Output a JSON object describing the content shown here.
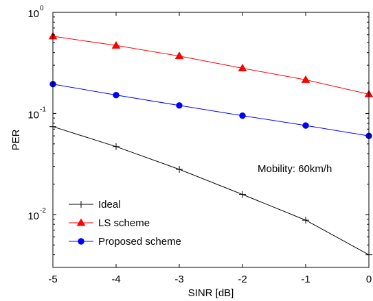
{
  "chart_data": {
    "type": "line",
    "xlabel": "SINR [dB]",
    "ylabel": "PER",
    "x": [
      -5,
      -4,
      -3,
      -2,
      -1,
      0
    ],
    "xlim": [
      -5,
      0
    ],
    "ylim": [
      0.003,
      1
    ],
    "yscale": "log",
    "grid": false,
    "legend_position": "bottom-left",
    "x_ticks": [
      "-5",
      "-4",
      "-3",
      "-2",
      "-1",
      "0"
    ],
    "y_ticks": [
      {
        "base": "10",
        "exp": "0",
        "value": 1
      },
      {
        "base": "10",
        "exp": "-1",
        "value": 0.1
      },
      {
        "base": "10",
        "exp": "-2",
        "value": 0.01
      }
    ],
    "annotation": "Mobility: 60km/h",
    "series": [
      {
        "name": "Ideal",
        "color": "#000000",
        "marker": "plus",
        "values": [
          0.074,
          0.047,
          0.028,
          0.0158,
          0.0088,
          0.004
        ]
      },
      {
        "name": "LS scheme",
        "color": "#ff0000",
        "marker": "triangle",
        "values": [
          0.58,
          0.47,
          0.37,
          0.28,
          0.215,
          0.155
        ]
      },
      {
        "name": "Proposed scheme",
        "color": "#0000ff",
        "marker": "circle",
        "values": [
          0.195,
          0.152,
          0.12,
          0.095,
          0.076,
          0.06
        ]
      }
    ]
  }
}
